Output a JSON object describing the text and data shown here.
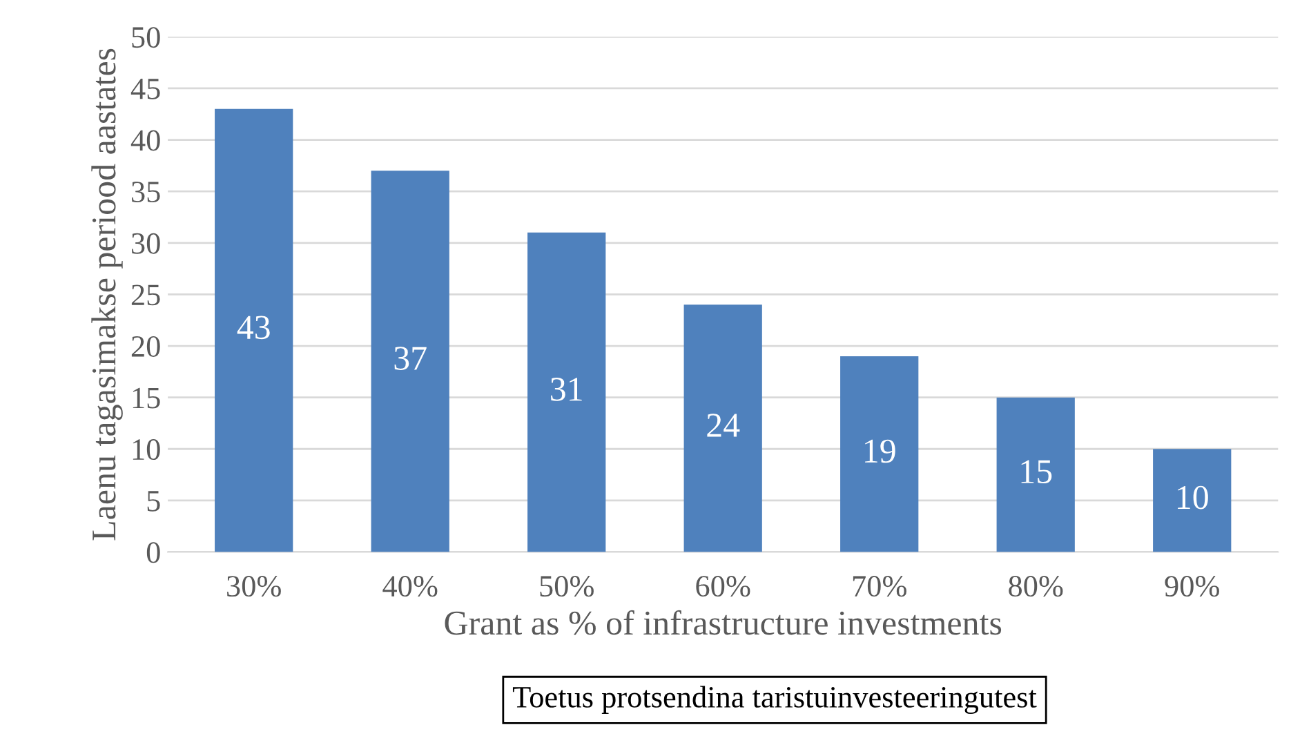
{
  "chart_data": {
    "type": "bar",
    "ylabel": "Laenu tagasimakse periood aastates",
    "xlabel": "Grant as % of infrastructure investments",
    "annotations": [
      "Toetus protsendina taristuinvesteeringutest"
    ],
    "categories": [
      "30%",
      "40%",
      "50%",
      "60%",
      "70%",
      "80%",
      "90%"
    ],
    "values": [
      43,
      37,
      31,
      24,
      19,
      15,
      10
    ],
    "color": "#4f81bd",
    "ylim": [
      0,
      50
    ],
    "yticks": [
      0,
      5,
      10,
      15,
      20,
      25,
      30,
      35,
      40,
      45,
      50
    ],
    "grid": "y",
    "data_labels": true,
    "legend": false
  }
}
